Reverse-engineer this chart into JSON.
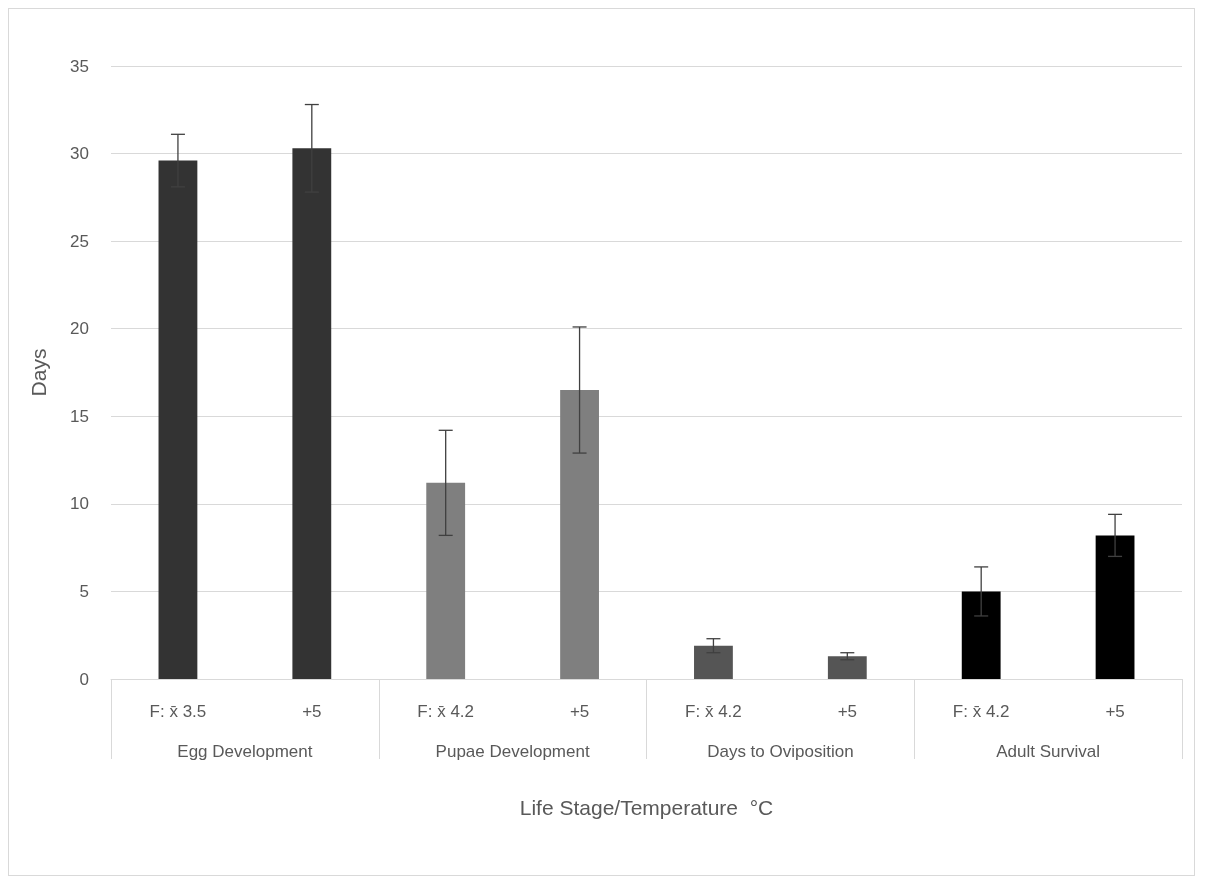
{
  "chart_data": {
    "type": "bar",
    "xlabel": "Life Stage/Temperature  °C",
    "ylabel": "Days",
    "categories": [
      "F: x̄ 3.5",
      "+5",
      "F: x̄ 4.2",
      "+5",
      "F: x̄ 4.2",
      "+5",
      "F: x̄ 4.2",
      "+5"
    ],
    "annotations": [
      "Egg Development",
      "Pupae Development",
      "Days to Oviposition",
      "Adult Survival"
    ],
    "values": [
      29.6,
      30.3,
      11.2,
      16.5,
      1.9,
      1.3,
      5.0,
      8.2
    ],
    "colors": [
      "#333333",
      "#333333",
      "#7f7f7f",
      "#7f7f7f",
      "#555555",
      "#555555",
      "#000000",
      "#000000"
    ],
    "errors": [
      1.5,
      2.5,
      3.0,
      3.6,
      0.4,
      0.2,
      1.4,
      1.2
    ],
    "ylim": [
      0,
      35
    ],
    "yticks": [
      0,
      5,
      10,
      15,
      20,
      25,
      30,
      35
    ],
    "grid": "y"
  }
}
